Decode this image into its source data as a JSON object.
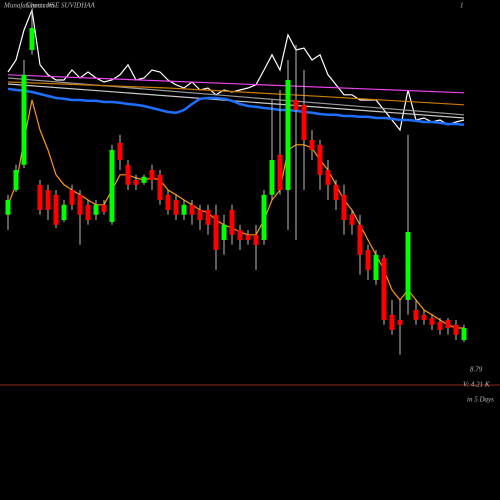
{
  "chart_data": {
    "type": "candlestick",
    "brand": "MunafaSutra.com",
    "title": "Charts NSE SUVIDHAA",
    "corner_label": "1",
    "last_price": "8.79",
    "volume_label": "V: 4.21 K",
    "period_label": "in 5 Days",
    "ylim": [
      7.4,
      17
    ],
    "up_color": "#00ff00",
    "down_color": "#ff0000",
    "candles": [
      [
        11.63,
        12.13,
        11.25,
        12.0
      ],
      [
        12.25,
        12.88,
        12.2,
        12.75
      ],
      [
        12.88,
        15.5,
        12.8,
        15.13
      ],
      [
        15.75,
        16.75,
        15.63,
        16.3
      ],
      [
        12.38,
        12.5,
        11.63,
        11.75
      ],
      [
        12.25,
        12.38,
        11.5,
        11.75
      ],
      [
        12.13,
        12.25,
        11.3,
        11.38
      ],
      [
        11.5,
        12.0,
        11.45,
        11.88
      ],
      [
        12.25,
        12.38,
        11.75,
        11.88
      ],
      [
        12.13,
        12.25,
        10.88,
        11.63
      ],
      [
        11.88,
        12.0,
        11.38,
        11.5
      ],
      [
        11.63,
        12.0,
        11.5,
        11.88
      ],
      [
        11.88,
        12.0,
        11.63,
        11.7
      ],
      [
        11.45,
        13.38,
        11.38,
        13.25
      ],
      [
        13.43,
        13.63,
        12.75,
        13.0
      ],
      [
        12.88,
        13.0,
        12.25,
        12.38
      ],
      [
        12.5,
        12.63,
        12.25,
        12.38
      ],
      [
        12.43,
        12.63,
        12.38,
        12.58
      ],
      [
        12.75,
        12.88,
        12.25,
        12.5
      ],
      [
        12.63,
        12.75,
        11.88,
        12.0
      ],
      [
        12.13,
        12.25,
        11.63,
        11.75
      ],
      [
        12.0,
        12.13,
        11.5,
        11.63
      ],
      [
        11.63,
        12.0,
        11.5,
        11.88
      ],
      [
        11.88,
        12.0,
        11.38,
        11.63
      ],
      [
        11.75,
        11.88,
        11.25,
        11.5
      ],
      [
        11.75,
        11.88,
        11.13,
        11.38
      ],
      [
        11.63,
        11.88,
        10.25,
        10.75
      ],
      [
        11.0,
        11.63,
        10.63,
        11.38
      ],
      [
        11.75,
        11.88,
        10.88,
        11.13
      ],
      [
        11.25,
        11.38,
        10.75,
        11.0
      ],
      [
        11.13,
        11.25,
        10.88,
        11.0
      ],
      [
        11.13,
        11.38,
        10.25,
        10.88
      ],
      [
        11.0,
        12.25,
        10.88,
        12.13
      ],
      [
        12.13,
        14.5,
        12.0,
        13.0
      ],
      [
        13.13,
        14.75,
        12.13,
        12.25
      ],
      [
        12.25,
        15.5,
        11.25,
        15.0
      ],
      [
        14.5,
        15.88,
        11.0,
        14.25
      ],
      [
        14.38,
        15.25,
        12.25,
        13.5
      ],
      [
        13.5,
        13.75,
        13.0,
        13.25
      ],
      [
        13.38,
        13.5,
        12.25,
        12.63
      ],
      [
        12.75,
        13.0,
        12.0,
        12.38
      ],
      [
        12.38,
        12.5,
        11.75,
        12.0
      ],
      [
        12.13,
        12.38,
        11.13,
        11.5
      ],
      [
        11.63,
        11.75,
        11.13,
        11.38
      ],
      [
        11.38,
        11.63,
        10.13,
        10.63
      ],
      [
        10.75,
        10.88,
        10.0,
        10.25
      ],
      [
        10.0,
        10.75,
        9.88,
        10.63
      ],
      [
        10.55,
        10.63,
        8.88,
        9.0
      ],
      [
        9.13,
        9.5,
        8.63,
        8.75
      ],
      [
        9.0,
        9.5,
        8.13,
        8.88
      ],
      [
        9.5,
        13.63,
        9.13,
        11.2
      ],
      [
        9.25,
        9.5,
        8.88,
        9.0
      ],
      [
        9.13,
        9.25,
        8.88,
        9.0
      ],
      [
        9.05,
        9.13,
        8.75,
        8.88
      ],
      [
        8.95,
        9.05,
        8.63,
        8.75
      ],
      [
        9.0,
        9.05,
        8.63,
        8.8
      ],
      [
        8.88,
        9.0,
        8.5,
        8.63
      ],
      [
        8.5,
        8.88,
        8.45,
        8.8
      ]
    ],
    "series": [
      {
        "color": "#ffffff",
        "values": [
          15.2,
          15.5,
          16.25,
          16.75,
          15.38,
          15.13,
          15.0,
          15.0,
          15.25,
          15.05,
          15.2,
          15.05,
          14.95,
          15.0,
          15.13,
          15.38,
          15.0,
          15.05,
          15.25,
          15.2,
          15.0,
          14.88,
          14.8,
          14.95,
          14.75,
          14.8,
          14.63,
          14.75,
          14.7,
          14.75,
          14.8,
          14.88,
          15.25,
          15.63,
          15.25,
          16.13,
          15.75,
          15.8,
          15.5,
          15.63,
          15.13,
          14.88,
          14.63,
          14.63,
          14.5,
          14.5,
          14.5,
          14.25,
          14.0,
          13.75,
          14.75,
          14.0,
          14.05,
          13.95,
          14.0,
          13.88,
          13.95,
          14.0
        ]
      },
      {
        "color": "#ff9900",
        "values": [
          11.88,
          12.38,
          13.5,
          14.5,
          13.75,
          13.25,
          12.63,
          12.38,
          12.25,
          12.13,
          12.0,
          11.88,
          11.88,
          12.25,
          12.63,
          12.63,
          12.55,
          12.5,
          12.55,
          12.5,
          12.25,
          12.13,
          12.0,
          11.88,
          11.75,
          11.68,
          11.5,
          11.38,
          11.3,
          11.2,
          11.13,
          11.13,
          11.5,
          12.0,
          12.25,
          13.25,
          13.38,
          13.38,
          13.3,
          13.0,
          12.75,
          12.38,
          12.0,
          11.75,
          11.38,
          11.0,
          10.63,
          10.25,
          9.75,
          9.5,
          9.75,
          9.5,
          9.25,
          9.13,
          9.0,
          8.88,
          8.8,
          8.8
        ]
      },
      {
        "color": "#999999",
        "x": [
          0,
          57
        ],
        "values": [
          15.05,
          14.13
        ]
      },
      {
        "color": "#cccccc",
        "x": [
          0,
          57
        ],
        "values": [
          14.9,
          14.05
        ]
      },
      {
        "color": "#cc7a00",
        "x": [
          0,
          20,
          40,
          57
        ],
        "values": [
          14.95,
          14.8,
          14.58,
          14.38
        ]
      },
      {
        "color": "#ee44ee",
        "x": [
          0,
          57
        ],
        "values": [
          15.13,
          14.68
        ]
      },
      {
        "color": "#1e6fff",
        "values": [
          14.78,
          14.75,
          14.73,
          14.7,
          14.65,
          14.6,
          14.55,
          14.53,
          14.5,
          14.5,
          14.48,
          14.48,
          14.45,
          14.45,
          14.43,
          14.4,
          14.38,
          14.35,
          14.3,
          14.25,
          14.2,
          14.18,
          14.25,
          14.4,
          14.53,
          14.55,
          14.55,
          14.53,
          14.48,
          14.4,
          14.35,
          14.33,
          14.3,
          14.28,
          14.25,
          14.25,
          14.23,
          14.2,
          14.18,
          14.15,
          14.13,
          14.13,
          14.1,
          14.1,
          14.08,
          14.08,
          14.05,
          14.05,
          14.03,
          14.0,
          14.0,
          13.98,
          13.95,
          13.95,
          13.93,
          13.9,
          13.9,
          13.88
        ]
      }
    ]
  }
}
